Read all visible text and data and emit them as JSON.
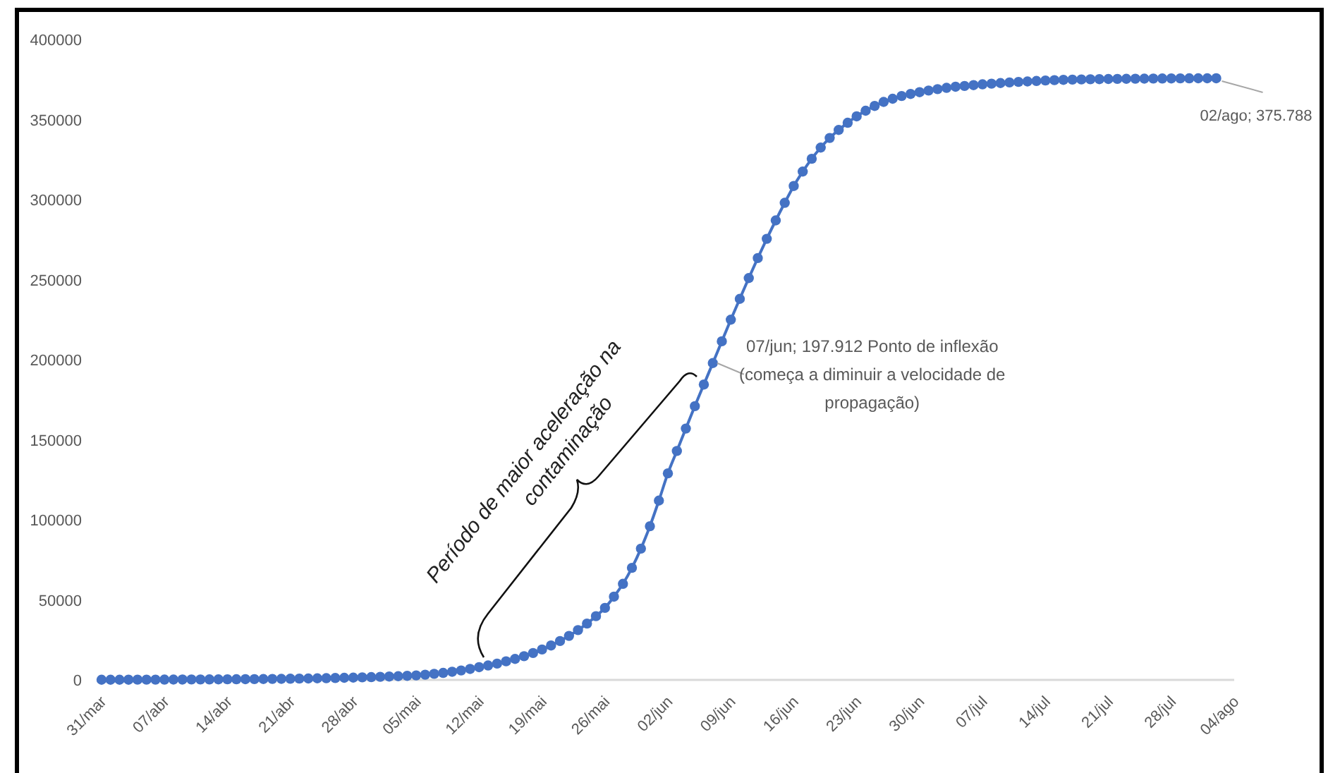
{
  "chart_data": {
    "type": "line",
    "x": [
      "--03-31",
      "--04-01",
      "--04-02",
      "--04-03",
      "--04-04",
      "--04-05",
      "--04-06",
      "--04-07",
      "--04-08",
      "--04-09",
      "--04-10",
      "--04-11",
      "--04-12",
      "--04-13",
      "--04-14",
      "--04-15",
      "--04-16",
      "--04-17",
      "--04-18",
      "--04-19",
      "--04-20",
      "--04-21",
      "--04-22",
      "--04-23",
      "--04-24",
      "--04-25",
      "--04-26",
      "--04-27",
      "--04-28",
      "--04-29",
      "--04-30",
      "--05-01",
      "--05-02",
      "--05-03",
      "--05-04",
      "--05-05",
      "--05-06",
      "--05-07",
      "--05-08",
      "--05-09",
      "--05-10",
      "--05-11",
      "--05-12",
      "--05-13",
      "--05-14",
      "--05-15",
      "--05-16",
      "--05-17",
      "--05-18",
      "--05-19",
      "--05-20",
      "--05-21",
      "--05-22",
      "--05-23",
      "--05-24",
      "--05-25",
      "--05-26",
      "--05-27",
      "--05-28",
      "--05-29",
      "--05-30",
      "--05-31",
      "--06-01",
      "--06-02",
      "--06-03",
      "--06-04",
      "--06-05",
      "--06-06",
      "--06-07",
      "--06-08",
      "--06-09",
      "--06-10",
      "--06-11",
      "--06-12",
      "--06-13",
      "--06-14",
      "--06-15",
      "--06-16",
      "--06-17",
      "--06-18",
      "--06-19",
      "--06-20",
      "--06-21",
      "--06-22",
      "--06-23",
      "--06-24",
      "--06-25",
      "--06-26",
      "--06-27",
      "--06-28",
      "--06-29",
      "--06-30",
      "--07-01",
      "--07-02",
      "--07-03",
      "--07-04",
      "--07-05",
      "--07-06",
      "--07-07",
      "--07-08",
      "--07-09",
      "--07-10",
      "--07-11",
      "--07-12",
      "--07-13",
      "--07-14",
      "--07-15",
      "--07-16",
      "--07-17",
      "--07-18",
      "--07-19",
      "--07-20",
      "--07-21",
      "--07-22",
      "--07-23",
      "--07-24",
      "--07-25",
      "--07-26",
      "--07-27",
      "--07-28",
      "--07-29",
      "--07-30",
      "--07-31",
      "--08-01",
      "--08-02"
    ],
    "series": [
      {
        "color": "#4472c4",
        "values": [
          100,
          110,
          121,
          133,
          146,
          161,
          177,
          195,
          214,
          236,
          259,
          285,
          314,
          345,
          380,
          418,
          459,
          505,
          556,
          612,
          673,
          740,
          814,
          895,
          985,
          1080,
          1190,
          1310,
          1440,
          1590,
          1740,
          1920,
          2110,
          2320,
          2550,
          2810,
          3260,
          3780,
          4390,
          5090,
          5900,
          6850,
          7950,
          9000,
          10200,
          11600,
          13100,
          14800,
          16800,
          19000,
          21500,
          24300,
          27500,
          31100,
          35200,
          39800,
          45000,
          52000,
          60000,
          70000,
          82000,
          96000,
          112000,
          129000,
          143000,
          157000,
          171000,
          184500,
          197912,
          211500,
          225000,
          238000,
          251000,
          263500,
          275500,
          287000,
          298000,
          308500,
          317500,
          325500,
          332500,
          338500,
          343500,
          348000,
          352000,
          355500,
          358500,
          361000,
          363000,
          364700,
          366000,
          367100,
          368100,
          369000,
          369800,
          370500,
          371000,
          371500,
          372000,
          372400,
          372800,
          373200,
          373500,
          373800,
          374100,
          374400,
          374600,
          374800,
          374950,
          375050,
          375150,
          375250,
          375320,
          375390,
          375450,
          375500,
          375550,
          375600,
          375640,
          375680,
          375710,
          375740,
          375760,
          375775,
          375788
        ]
      }
    ],
    "xlim": [
      "--03-31",
      "--08-04"
    ],
    "xticks": [
      {
        "value": "--03-31",
        "label": "31/mar"
      },
      {
        "value": "--04-07",
        "label": "07/abr"
      },
      {
        "value": "--04-14",
        "label": "14/abr"
      },
      {
        "value": "--04-21",
        "label": "21/abr"
      },
      {
        "value": "--04-28",
        "label": "28/abr"
      },
      {
        "value": "--05-05",
        "label": "05/mai"
      },
      {
        "value": "--05-12",
        "label": "12/mai"
      },
      {
        "value": "--05-19",
        "label": "19/mai"
      },
      {
        "value": "--05-26",
        "label": "26/mai"
      },
      {
        "value": "--06-02",
        "label": "02/jun"
      },
      {
        "value": "--06-09",
        "label": "09/jun"
      },
      {
        "value": "--06-16",
        "label": "16/jun"
      },
      {
        "value": "--06-23",
        "label": "23/jun"
      },
      {
        "value": "--06-30",
        "label": "30/jun"
      },
      {
        "value": "--07-07",
        "label": "07/jul"
      },
      {
        "value": "--07-14",
        "label": "14/jul"
      },
      {
        "value": "--07-21",
        "label": "21/jul"
      },
      {
        "value": "--07-28",
        "label": "28/jul"
      },
      {
        "value": "--08-04",
        "label": "04/ago"
      }
    ],
    "ylim": [
      0,
      400000
    ],
    "yticks": [
      0,
      50000,
      100000,
      150000,
      200000,
      250000,
      300000,
      350000,
      400000
    ],
    "grid": false,
    "marker": "circle",
    "line_style": "solid",
    "annotations": [
      {
        "text": "07/jun; 197.912 Ponto de inflexão (começa a diminuir a velocidade de propagação)",
        "x": "--06-07",
        "y": 197912
      },
      {
        "text": "02/ago; 375.788",
        "x": "--08-02",
        "y": 375788
      },
      "Período de maior aceleração na contaminação"
    ]
  }
}
